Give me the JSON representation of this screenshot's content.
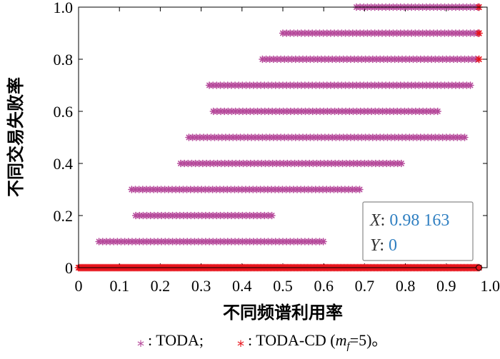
{
  "chart_data": {
    "type": "scatter",
    "xlabel": "不同频谱利用率",
    "ylabel": "不同交易失败率",
    "xlim": [
      0,
      1.0
    ],
    "ylim": [
      0,
      1.0
    ],
    "x_ticks": [
      "0",
      "0.1",
      "0.2",
      "0.3",
      "0.4",
      "0.5",
      "0.6",
      "0.7",
      "0.8",
      "0.9",
      "1.0"
    ],
    "y_ticks": [
      "0",
      "0.2",
      "0.4",
      "0.6",
      "0.8",
      "1.0"
    ],
    "grid": false,
    "legend": {
      "placement": "bottom",
      "items": [
        {
          "marker": "*",
          "label": ": TODA;",
          "color": "#b5489a"
        },
        {
          "marker": "*",
          "label": ": TODA-CD (",
          "math_var": "m",
          "math_sub": "f",
          "suffix": "=5)。",
          "color": "#e8141c"
        }
      ]
    },
    "series": [
      {
        "color": "#b5489a",
        "groups": [
          {
            "y": 1.0,
            "x_start": 0.68,
            "x_end": 0.98
          },
          {
            "y": 0.9,
            "x_start": 0.5,
            "x_end": 0.98
          },
          {
            "y": 0.8,
            "x_start": 0.45,
            "x_end": 0.98
          },
          {
            "y": 0.7,
            "x_start": 0.32,
            "x_end": 0.96
          },
          {
            "y": 0.6,
            "x_start": 0.33,
            "x_end": 0.88
          },
          {
            "y": 0.5,
            "x_start": 0.27,
            "x_end": 0.95
          },
          {
            "y": 0.4,
            "x_start": 0.25,
            "x_end": 0.79
          },
          {
            "y": 0.3,
            "x_start": 0.13,
            "x_end": 0.69
          },
          {
            "y": 0.2,
            "x_start": 0.14,
            "x_end": 0.48
          },
          {
            "y": 0.1,
            "x_start": 0.05,
            "x_end": 0.6
          }
        ]
      },
      {
        "color": "#e8141c",
        "groups": [
          {
            "y": 0,
            "x_start": 0,
            "x_end": 0.98
          },
          {
            "y": 1.0,
            "x_start": 0.98,
            "x_end": 0.98
          },
          {
            "y": 0.9,
            "x_start": 0.98,
            "x_end": 0.98
          },
          {
            "y": 0.8,
            "x_start": 0.98,
            "x_end": 0.98
          }
        ]
      }
    ],
    "data_tip": {
      "x_label": "X",
      "x_value": "0.98 163",
      "y_label": "Y",
      "y_value": "0",
      "point": {
        "x": 0.98,
        "y": 0
      }
    }
  }
}
